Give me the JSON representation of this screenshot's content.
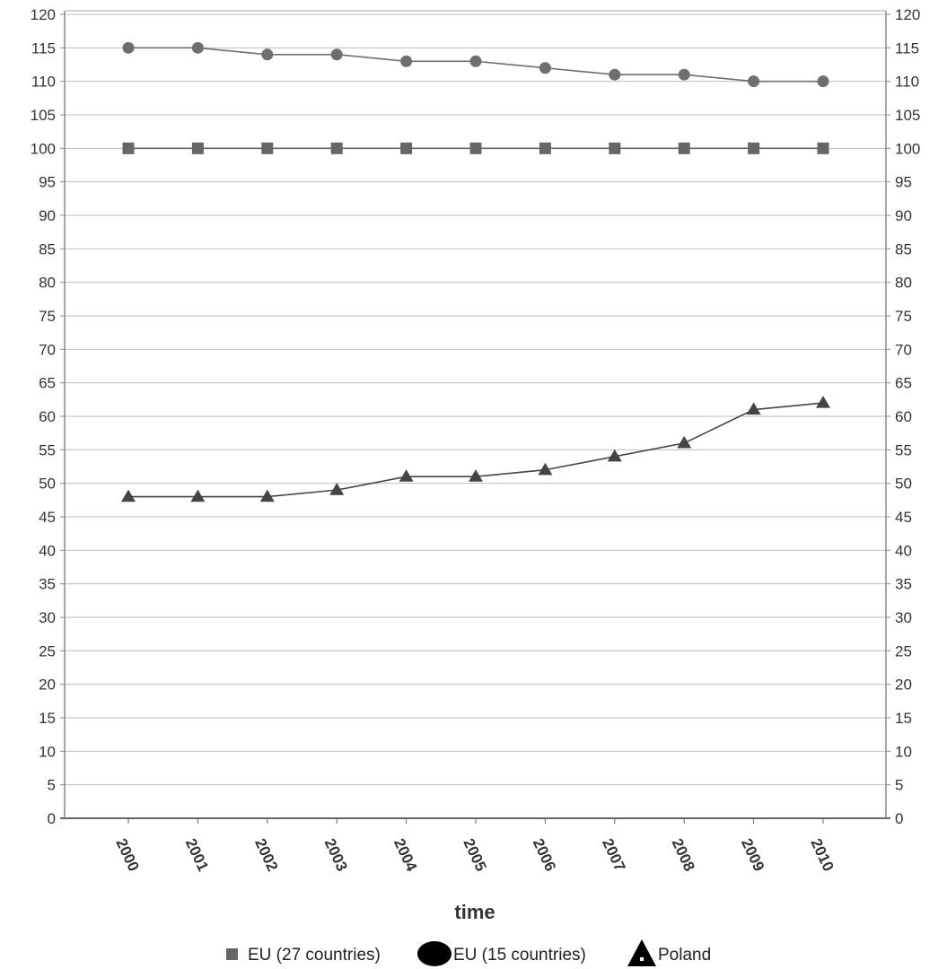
{
  "chart_data": {
    "type": "line",
    "title": "",
    "xlabel": "time",
    "ylabel": "",
    "categories": [
      "2000",
      "2001",
      "2002",
      "2003",
      "2004",
      "2005",
      "2006",
      "2007",
      "2008",
      "2009",
      "2010"
    ],
    "ylim": [
      0,
      120
    ],
    "y_ticks": [
      0,
      5,
      10,
      15,
      20,
      25,
      30,
      35,
      40,
      45,
      50,
      55,
      60,
      65,
      70,
      75,
      80,
      85,
      90,
      95,
      100,
      105,
      110,
      115,
      120
    ],
    "grid": true,
    "dual_y_axis": true,
    "legend_position": "bottom",
    "series": [
      {
        "name": "EU (27 countries)",
        "marker": "square",
        "color": "#666666",
        "values": [
          100,
          100,
          100,
          100,
          100,
          100,
          100,
          100,
          100,
          100,
          100
        ]
      },
      {
        "name": "EU (15 countries)",
        "marker": "circle",
        "color": "#6e6e6e",
        "values": [
          115,
          115,
          114,
          114,
          113,
          113,
          112,
          111,
          111,
          110,
          110
        ]
      },
      {
        "name": "Poland",
        "marker": "triangle",
        "color": "#444444",
        "values": [
          48,
          48,
          48,
          49,
          51,
          51,
          52,
          54,
          56,
          61,
          62
        ]
      }
    ]
  }
}
